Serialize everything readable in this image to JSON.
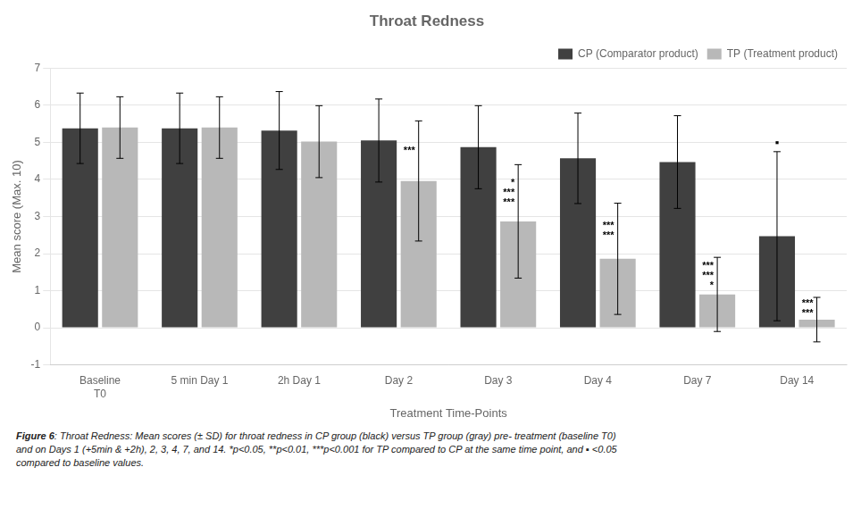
{
  "chart_data": {
    "type": "bar",
    "title": "Throat Redness",
    "xlabel": "Treatment Time-Points",
    "ylabel": "Mean score (Max. 10)",
    "categories": [
      "Baseline\nT0",
      "5 min Day 1",
      "2h Day 1",
      "Day 2",
      "Day 3",
      "Day 4",
      "Day 7",
      "Day 14"
    ],
    "series": [
      {
        "name": "CP (Comparator product)",
        "color": "#404040",
        "values": [
          5.38,
          5.38,
          5.32,
          5.05,
          4.87,
          4.57,
          4.47,
          2.47
        ],
        "errors": [
          0.95,
          0.95,
          1.05,
          1.12,
          1.12,
          1.22,
          1.25,
          2.28
        ],
        "significance": [
          null,
          null,
          null,
          null,
          null,
          null,
          null,
          [
            "▪"
          ]
        ]
      },
      {
        "name": "TP (Treatment product)",
        "color": "#b8b8b8",
        "values": [
          5.4,
          5.4,
          5.02,
          3.96,
          2.87,
          1.86,
          0.9,
          0.22
        ],
        "errors": [
          0.83,
          0.83,
          0.97,
          1.62,
          1.53,
          1.5,
          1.0,
          0.6
        ],
        "significance": [
          null,
          null,
          null,
          [
            "***"
          ],
          [
            "*",
            "***",
            "***"
          ],
          [
            "***",
            "***"
          ],
          [
            "***",
            "***",
            "*"
          ],
          [
            "***",
            "***"
          ]
        ]
      }
    ],
    "ylim": [
      -1,
      7
    ],
    "yticks": [
      -1,
      0,
      1,
      2,
      3,
      4,
      5,
      6,
      7
    ],
    "grid": "y",
    "legend": "upper right",
    "caption_bold": "Figure 6",
    "caption": ": Throat Redness: Mean scores (± SD) for throat redness in CP group (black) versus TP group (gray) pre- treatment (baseline T0)\nand on Days 1 (+5min & +2h), 2, 3, 4, 7, and 14. *p<0.05, **p<0.01, ***p<0.001 for TP compared to CP at the same time point, and ▪ <0.05\ncompared to baseline values."
  }
}
